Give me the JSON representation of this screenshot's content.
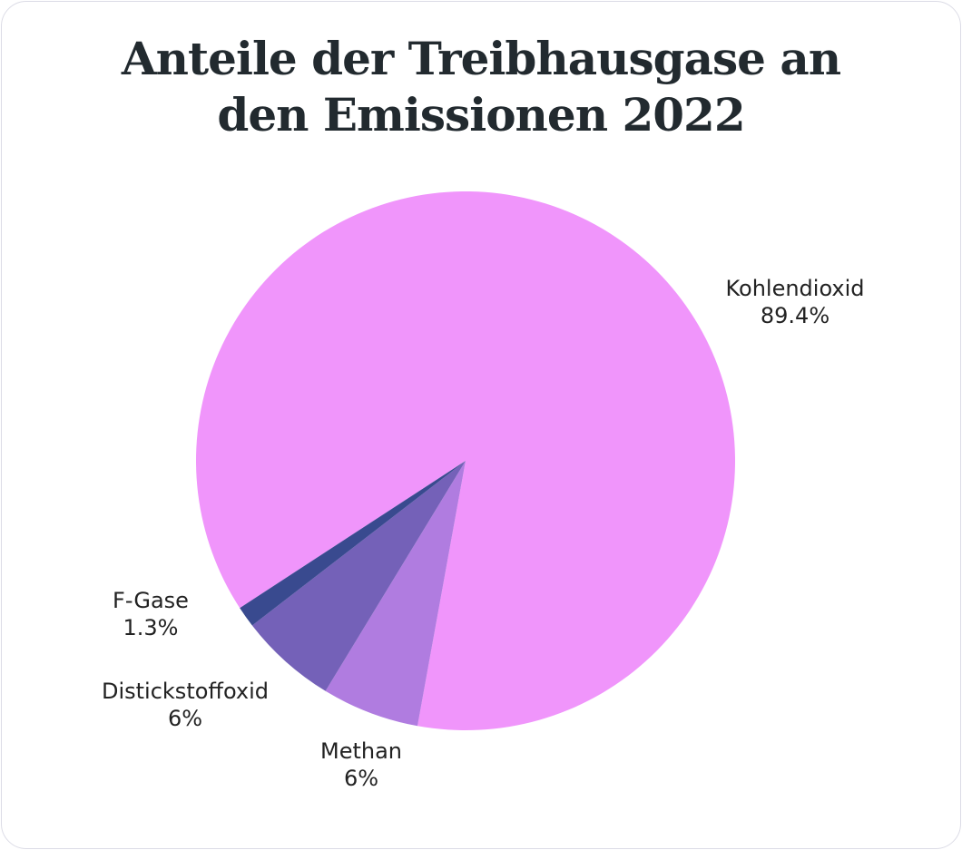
{
  "chart_data": {
    "type": "pie",
    "title": "Anteile der Treibhausgase an den Emissionen 2022",
    "categories": [
      "Kohlendioxid",
      "Methan",
      "Distickstoffoxid",
      "F-Gase"
    ],
    "values": [
      89.4,
      6,
      6,
      1.3
    ],
    "value_labels": [
      "89.4%",
      "6%",
      "6%",
      "1.3%"
    ],
    "colors": [
      "#f095fb",
      "#b07ce0",
      "#7461b8",
      "#394a8f"
    ]
  }
}
